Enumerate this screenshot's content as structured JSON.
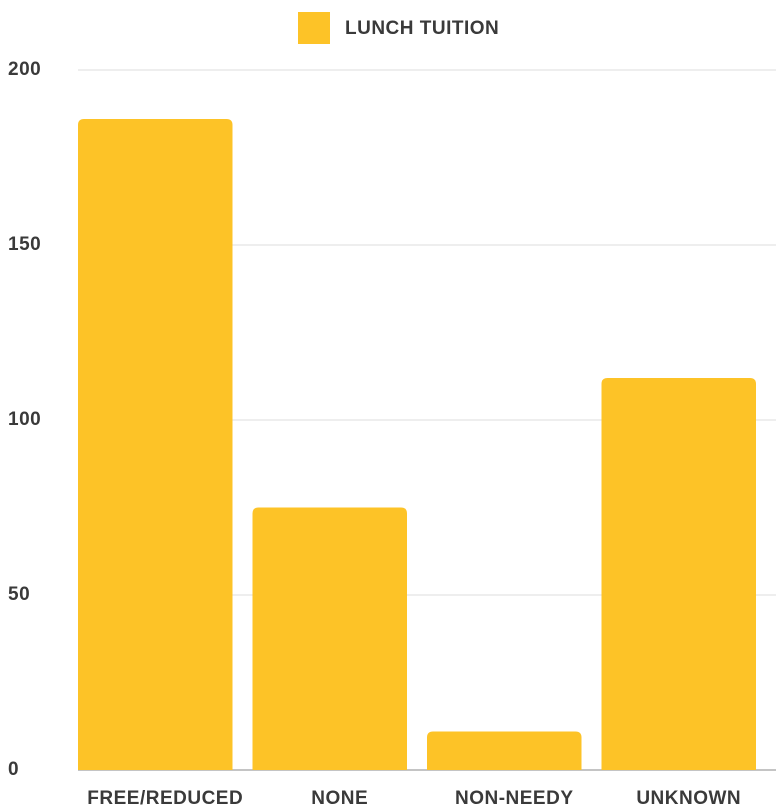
{
  "chart_data": {
    "type": "bar",
    "categories": [
      "FREE/REDUCED",
      "NONE",
      "NON-NEEDY",
      "UNKNOWN"
    ],
    "series": [
      {
        "name": "LUNCH TUITION",
        "color": "#fdc327",
        "values": [
          186,
          75,
          11,
          112
        ]
      }
    ],
    "ylim": [
      0,
      200
    ],
    "yticks": [
      0,
      50,
      100,
      150,
      200
    ],
    "grid": true,
    "legend": "top"
  }
}
